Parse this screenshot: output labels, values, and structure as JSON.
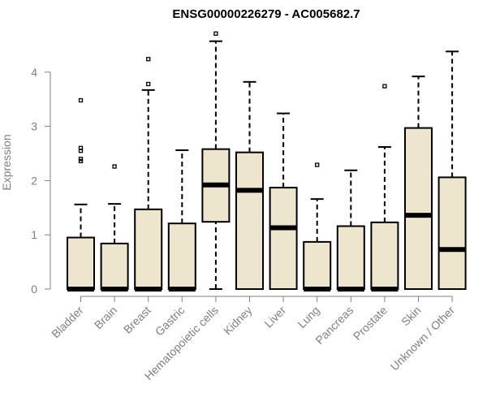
{
  "chart_data": {
    "type": "box",
    "title": "ENSG00000226279 - AC005682.7",
    "xlabel": "",
    "ylabel": "Expression",
    "ylim": [
      0,
      4.8
    ],
    "yticks": [
      0,
      1,
      2,
      3,
      4
    ],
    "grid": false,
    "colors": {
      "box_fill": "#ede6cc",
      "box_stroke": "#000000",
      "axis": "#7f7f7f"
    },
    "categories": [
      "Bladder",
      "Brain",
      "Breast",
      "Gastric",
      "Hematopoietic cells",
      "Kidney",
      "Liver",
      "Lung",
      "Pancreas",
      "Prostate",
      "Skin",
      "Unknown / Other"
    ],
    "boxes": [
      {
        "category": "Bladder",
        "whisker_low": 0,
        "q1": 0,
        "median": 0,
        "q3": 0.95,
        "whisker_high": 1.56,
        "outliers": [
          3.48,
          2.6,
          2.55,
          2.4,
          2.36
        ]
      },
      {
        "category": "Brain",
        "whisker_low": 0,
        "q1": 0,
        "median": 0,
        "q3": 0.84,
        "whisker_high": 1.57,
        "outliers": [
          2.26
        ]
      },
      {
        "category": "Breast",
        "whisker_low": 0,
        "q1": 0,
        "median": 0,
        "q3": 1.47,
        "whisker_high": 3.67,
        "outliers": [
          4.24,
          3.78
        ]
      },
      {
        "category": "Gastric",
        "whisker_low": 0,
        "q1": 0,
        "median": 0,
        "q3": 1.21,
        "whisker_high": 2.56,
        "outliers": []
      },
      {
        "category": "Hematopoietic cells",
        "whisker_low": 0,
        "q1": 1.24,
        "median": 1.92,
        "q3": 2.58,
        "whisker_high": 4.57,
        "outliers": [
          4.71
        ]
      },
      {
        "category": "Kidney",
        "whisker_low": 0,
        "q1": 0,
        "median": 1.82,
        "q3": 2.52,
        "whisker_high": 3.82,
        "outliers": []
      },
      {
        "category": "Liver",
        "whisker_low": 0,
        "q1": 0,
        "median": 1.13,
        "q3": 1.87,
        "whisker_high": 3.24,
        "outliers": []
      },
      {
        "category": "Lung",
        "whisker_low": 0,
        "q1": 0,
        "median": 0,
        "q3": 0.87,
        "whisker_high": 1.66,
        "outliers": [
          2.29
        ]
      },
      {
        "category": "Pancreas",
        "whisker_low": 0,
        "q1": 0,
        "median": 0,
        "q3": 1.16,
        "whisker_high": 2.19,
        "outliers": []
      },
      {
        "category": "Prostate",
        "whisker_low": 0,
        "q1": 0,
        "median": 0,
        "q3": 1.23,
        "whisker_high": 2.62,
        "outliers": [
          3.74
        ]
      },
      {
        "category": "Skin",
        "whisker_low": 0,
        "q1": 0,
        "median": 1.36,
        "q3": 2.97,
        "whisker_high": 3.92,
        "outliers": []
      },
      {
        "category": "Unknown / Other",
        "whisker_low": 0,
        "q1": 0,
        "median": 0.73,
        "q3": 2.06,
        "whisker_high": 4.38,
        "outliers": []
      }
    ]
  }
}
